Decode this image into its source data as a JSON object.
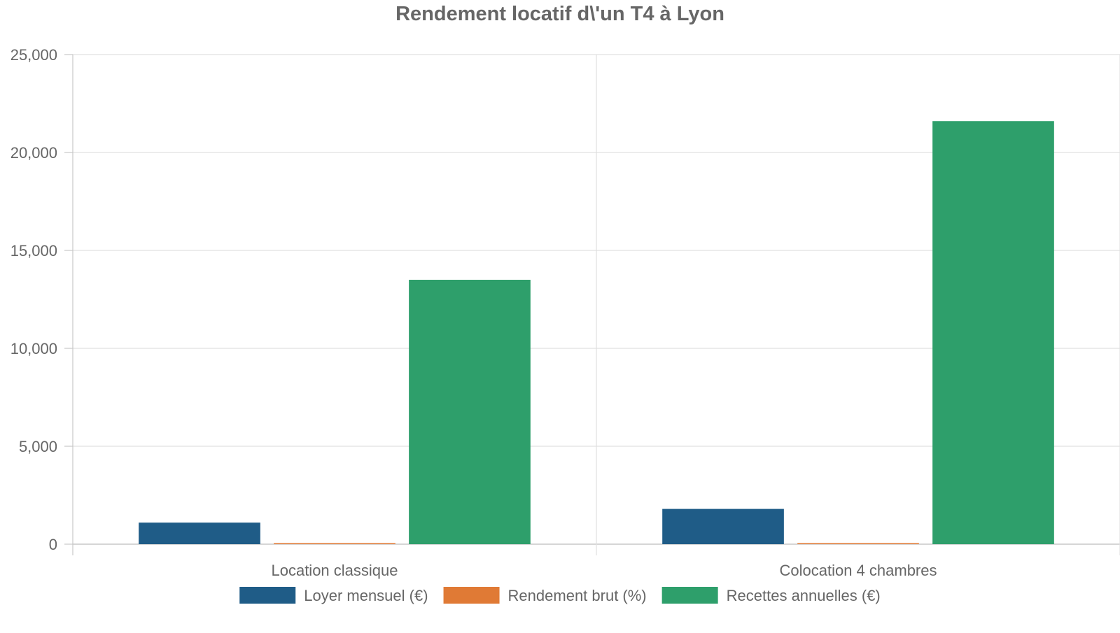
{
  "chart_data": {
    "type": "bar",
    "title": "Rendement locatif d\\'un T4 à Lyon",
    "xlabel": "",
    "ylabel": "",
    "categories": [
      "Location classique",
      "Colocation 4 chambres"
    ],
    "series": [
      {
        "name": "Loyer mensuel (€)",
        "values": [
          1100,
          1800
        ],
        "color": "#1f5c87"
      },
      {
        "name": "Rendement brut (%)",
        "values": [
          4.5,
          7.2
        ],
        "color": "#e07a35"
      },
      {
        "name": "Recettes annuelles (€)",
        "values": [
          13500,
          21600
        ],
        "color": "#2e9f6b"
      }
    ],
    "ylim": [
      0,
      25000
    ],
    "yticks": [
      0,
      5000,
      10000,
      15000,
      20000,
      25000
    ],
    "ytick_labels": [
      "0",
      "5,000",
      "10,000",
      "15,000",
      "20,000",
      "25,000"
    ],
    "grid": true,
    "legend_position": "bottom"
  }
}
